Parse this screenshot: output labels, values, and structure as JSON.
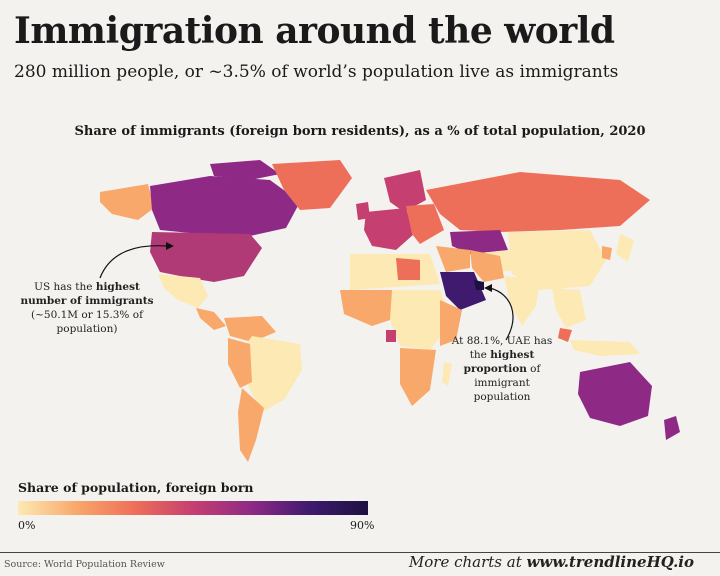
{
  "header": {
    "title": "Immigration around the world",
    "subtitle": "280 million people, or ~3.5% of world’s population live as immigrants"
  },
  "map": {
    "heading": "Share of immigrants (foreign born residents), as a % of total population, 2020",
    "color_scale": {
      "min_label": "0%",
      "max_label": "90%",
      "colors": [
        "#fde9b4",
        "#f8a86b",
        "#ee6f59",
        "#c53f70",
        "#8e2a86",
        "#3f1a6e",
        "#1d1140"
      ]
    },
    "annotations": {
      "us": {
        "line1": "US has the ",
        "bold1": "highest",
        "bold2": "number of immigrants",
        "line3": "(~50.1M or 15.3% of",
        "line4": "population)"
      },
      "uae": {
        "line1": "At 88.1%, UAE has",
        "line2": "the ",
        "bold1": "highest",
        "bold2": "proportion",
        "line3a": " of",
        "line4": "immigrant",
        "line5": "population"
      }
    }
  },
  "legend": {
    "title": "Share of population, foreign born",
    "min": "0%",
    "max": "90%"
  },
  "footer": {
    "source": "Source: World Population Review",
    "more_prefix": "More charts at ",
    "more_site": "www.trendlineHQ.io"
  }
}
